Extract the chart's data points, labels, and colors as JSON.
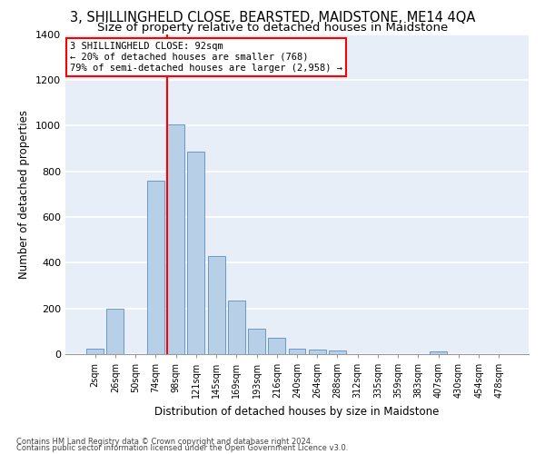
{
  "title": "3, SHILLINGHELD CLOSE, BEARSTED, MAIDSTONE, ME14 4QA",
  "subtitle": "Size of property relative to detached houses in Maidstone",
  "xlabel": "Distribution of detached houses by size in Maidstone",
  "ylabel": "Number of detached properties",
  "bar_labels": [
    "2sqm",
    "26sqm",
    "50sqm",
    "74sqm",
    "98sqm",
    "121sqm",
    "145sqm",
    "169sqm",
    "193sqm",
    "216sqm",
    "240sqm",
    "264sqm",
    "288sqm",
    "312sqm",
    "335sqm",
    "359sqm",
    "383sqm",
    "407sqm",
    "430sqm",
    "454sqm",
    "478sqm"
  ],
  "bar_values": [
    25,
    200,
    0,
    760,
    1005,
    885,
    430,
    235,
    110,
    70,
    25,
    20,
    15,
    0,
    0,
    0,
    0,
    10,
    0,
    0,
    0
  ],
  "bar_color": "#b8cfe8",
  "bar_edge_color": "#5a8fc2",
  "vline_index": 4,
  "vline_color": "red",
  "annotation_text": "3 SHILLINGHELD CLOSE: 92sqm\n← 20% of detached houses are smaller (768)\n79% of semi-detached houses are larger (2,958) →",
  "annotation_box_color": "white",
  "annotation_box_edge": "red",
  "ylim": [
    0,
    1400
  ],
  "yticks": [
    0,
    200,
    400,
    600,
    800,
    1000,
    1200,
    1400
  ],
  "footer1": "Contains HM Land Registry data © Crown copyright and database right 2024.",
  "footer2": "Contains public sector information licensed under the Open Government Licence v3.0.",
  "bg_color": "#e8eef8",
  "grid_color": "#ffffff",
  "title_fontsize": 10.5,
  "subtitle_fontsize": 9.5,
  "tick_fontsize": 7,
  "ylabel_fontsize": 8.5,
  "xlabel_fontsize": 8.5,
  "footer_fontsize": 6
}
